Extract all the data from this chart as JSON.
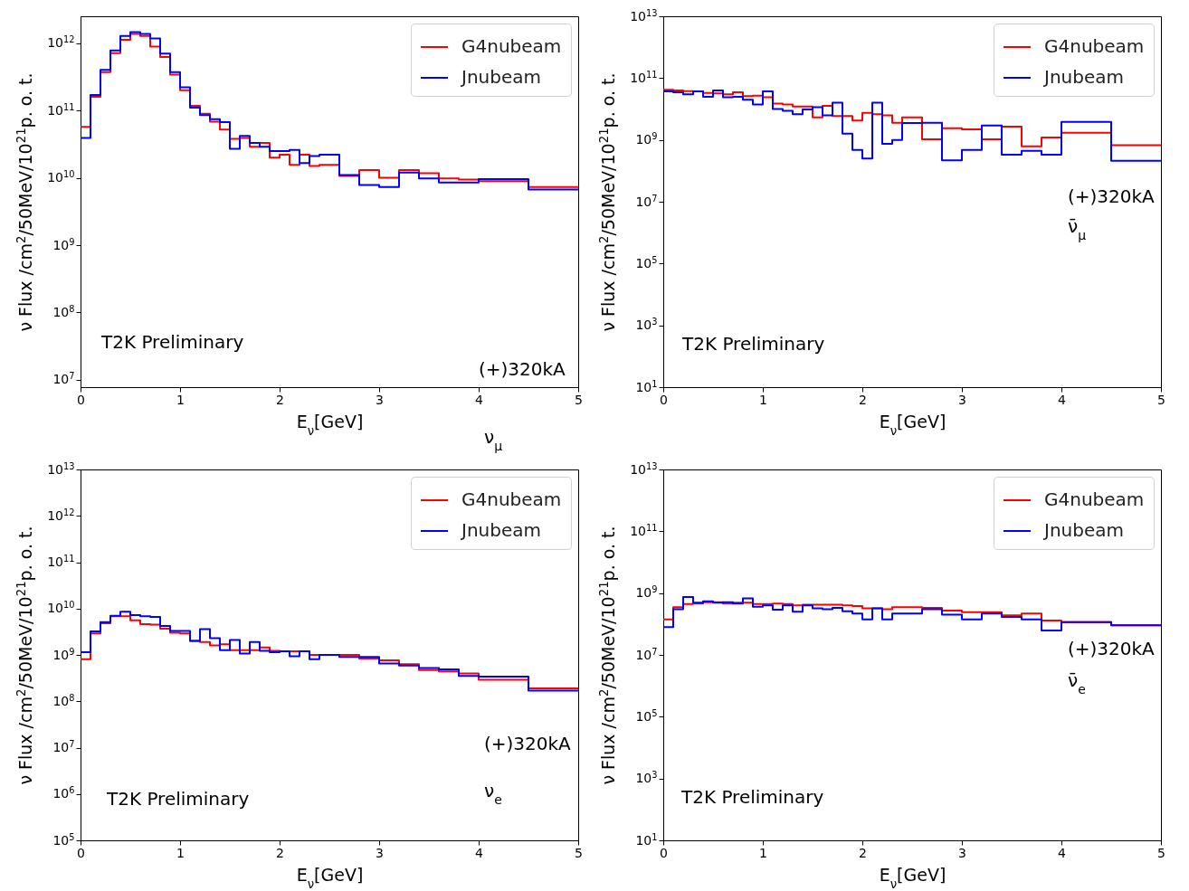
{
  "chart_data": [
    {
      "type": "histogram",
      "bins": [
        0,
        0.1,
        0.2,
        0.3,
        0.4,
        0.5,
        0.6,
        0.7,
        0.8,
        0.9,
        1.0,
        1.1,
        1.2,
        1.3,
        1.4,
        1.5,
        1.6,
        1.7,
        1.8,
        1.9,
        2.0,
        2.1,
        2.2,
        2.3,
        2.4,
        2.6,
        2.8,
        3.0,
        3.2,
        3.4,
        3.6,
        3.8,
        4.0,
        4.5,
        5.0
      ],
      "series": [
        {
          "name": "G4nubeam",
          "color": "#ff0000",
          "values": [
            57000000000.0,
            160000000000.0,
            370000000000.0,
            710000000000.0,
            1120000000000.0,
            1370000000000.0,
            1280000000000.0,
            890000000000.0,
            620000000000.0,
            340000000000.0,
            200000000000.0,
            117000000000.0,
            89000000000.0,
            68000000000.0,
            52000000000.0,
            38000000000.0,
            39000000000.0,
            29000000000.0,
            33000000000.0,
            20000000000.0,
            22000000000.0,
            15600000000.0,
            22000000000.0,
            15000000000.0,
            15600000000.0,
            10700000000.0,
            13000000000.0,
            10000000000.0,
            13000000000.0,
            11700000000.0,
            9800000000.0,
            9400000000.0,
            8900000000.0,
            7300000000.0
          ]
        },
        {
          "name": "Jnubeam",
          "color": "#0000ff",
          "values": [
            39000000000.0,
            170000000000.0,
            400000000000.0,
            780000000000.0,
            1280000000000.0,
            1460000000000.0,
            1370000000000.0,
            1170000000000.0,
            700000000000.0,
            370000000000.0,
            220000000000.0,
            110000000000.0,
            85000000000.0,
            74000000000.0,
            67000000000.0,
            27000000000.0,
            42000000000.0,
            33000000000.0,
            29000000000.0,
            25000000000.0,
            25000000000.0,
            26000000000.0,
            16600000000.0,
            21000000000.0,
            22000000000.0,
            11000000000.0,
            7800000000.0,
            7300000000.0,
            12000000000.0,
            9800000000.0,
            8500000000.0,
            8500000000.0,
            9600000000.0,
            6700000000.0
          ]
        }
      ],
      "xlabel": "E$_{ν}$[GeV]",
      "ylabel": "ν Flux /cm$^{2}$/50MeV/10$^{21}$p. o. t.",
      "xlim": [
        0,
        5
      ],
      "xticks": [
        0,
        1,
        2,
        3,
        4,
        5
      ],
      "log": true,
      "ylim": [
        7800000.0,
        2500000000000.0
      ],
      "yticks": [
        {
          "value": 10000000.0,
          "label": "10$^{7}$"
        },
        {
          "value": 100000000.0,
          "label": "10$^{8}$"
        },
        {
          "value": 1000000000.0,
          "label": "10$^{9}$"
        },
        {
          "value": 10000000000.0,
          "label": "10$^{10}$"
        },
        {
          "value": 100000000000.0,
          "label": "10$^{11}$"
        },
        {
          "value": 1000000000000.0,
          "label": "10$^{12}$"
        }
      ],
      "legend": "top right",
      "annotations": [
        "T2K Preliminary",
        "(+)320kA",
        "ν$_{μ}$"
      ]
    },
    {
      "type": "histogram",
      "bins": [
        0,
        0.1,
        0.2,
        0.3,
        0.4,
        0.5,
        0.6,
        0.7,
        0.8,
        0.9,
        1.0,
        1.1,
        1.2,
        1.3,
        1.4,
        1.5,
        1.6,
        1.7,
        1.8,
        1.9,
        2.0,
        2.1,
        2.2,
        2.3,
        2.4,
        2.6,
        2.8,
        3.0,
        3.2,
        3.4,
        3.6,
        3.8,
        4.0,
        4.5,
        5.0
      ],
      "series": [
        {
          "name": "G4nubeam",
          "color": "#ff0000",
          "values": [
            42000000000.0,
            40000000000.0,
            38000000000.0,
            37000000000.0,
            33000000000.0,
            32000000000.0,
            30000000000.0,
            35000000000.0,
            26000000000.0,
            27000000000.0,
            24000000000.0,
            15000000000.0,
            14000000000.0,
            12000000000.0,
            12000000000.0,
            5400000000.0,
            12600000000.0,
            5900000000.0,
            5900000000.0,
            4200000000.0,
            7500000000.0,
            6800000000.0,
            6200000000.0,
            3600000000.0,
            5400000000.0,
            1050000000.0,
            2400000000.0,
            2200000000.0,
            1050000000.0,
            2700000000.0,
            620000000.0,
            1200000000.0,
            1700000000.0,
            680000000.0
          ]
        },
        {
          "name": "Jnubeam",
          "color": "#0000ff",
          "values": [
            37000000000.0,
            35000000000.0,
            30000000000.0,
            37000000000.0,
            25000000000.0,
            40000000000.0,
            24000000000.0,
            25000000000.0,
            20000000000.0,
            14000000000.0,
            37000000000.0,
            10000000000.0,
            8700000000.0,
            6800000000.0,
            9600000000.0,
            11500000000.0,
            6200000000.0,
            16000000000.0,
            1600000000.0,
            470000000.0,
            250000000.0,
            16000000000.0,
            750000000.0,
            1000000000.0,
            3500000000.0,
            3600000000.0,
            220000000.0,
            470000000.0,
            2900000000.0,
            330000000.0,
            440000000.0,
            330000000.0,
            3800000000.0,
            210000000.0
          ]
        }
      ],
      "xlabel": "E$_{ν}$[GeV]",
      "ylabel": "ν Flux /cm$^{2}$/50MeV/10$^{21}$p. o. t.",
      "xlim": [
        0,
        5
      ],
      "xticks": [
        0,
        1,
        2,
        3,
        4,
        5
      ],
      "log": true,
      "ylim": [
        10,
        10000000000000.0
      ],
      "yticks": [
        {
          "value": 10,
          "label": "10$^{1}$"
        },
        {
          "value": 1000.0,
          "label": "10$^{3}$"
        },
        {
          "value": 100000.0,
          "label": "10$^{5}$"
        },
        {
          "value": 10000000.0,
          "label": "10$^{7}$"
        },
        {
          "value": 1000000000.0,
          "label": "10$^{9}$"
        },
        {
          "value": 100000000000.0,
          "label": "10$^{11}$"
        },
        {
          "value": 10000000000000.0,
          "label": "10$^{13}$"
        }
      ],
      "legend": "top right",
      "annotations": [
        "T2K Preliminary",
        "(+)320kA",
        "ν̄$_{μ}$"
      ]
    },
    {
      "type": "histogram",
      "bins": [
        0,
        0.1,
        0.2,
        0.3,
        0.4,
        0.5,
        0.6,
        0.7,
        0.8,
        0.9,
        1.0,
        1.1,
        1.2,
        1.3,
        1.4,
        1.5,
        1.6,
        1.7,
        1.8,
        1.9,
        2.0,
        2.1,
        2.2,
        2.3,
        2.4,
        2.6,
        2.8,
        3.0,
        3.2,
        3.4,
        3.6,
        3.8,
        4.0,
        4.5,
        5.0
      ],
      "series": [
        {
          "name": "G4nubeam",
          "color": "#ff0000",
          "values": [
            810000000.0,
            2900000000.0,
            4800000000.0,
            6800000000.0,
            6800000000.0,
            5600000000.0,
            4600000000.0,
            4500000000.0,
            3700000000.0,
            3000000000.0,
            2900000000.0,
            2000000000.0,
            1900000000.0,
            1600000000.0,
            1700000000.0,
            1260000000.0,
            1260000000.0,
            1260000000.0,
            1450000000.0,
            1230000000.0,
            1200000000.0,
            1200000000.0,
            1200000000.0,
            1000000000.0,
            1000000000.0,
            1000000000.0,
            840000000.0,
            760000000.0,
            630000000.0,
            470000000.0,
            440000000.0,
            400000000.0,
            290000000.0,
            190000000.0
          ]
        },
        {
          "name": "Jnubeam",
          "color": "#0000ff",
          "values": [
            1150000000.0,
            3200000000.0,
            5100000000.0,
            7000000000.0,
            8500000000.0,
            7200000000.0,
            6800000000.0,
            6600000000.0,
            4200000000.0,
            3300000000.0,
            3300000000.0,
            2000000000.0,
            3600000000.0,
            2300000000.0,
            1260000000.0,
            2100000000.0,
            1070000000.0,
            1900000000.0,
            1230000000.0,
            1150000000.0,
            1200000000.0,
            930000000.0,
            1200000000.0,
            810000000.0,
            1000000000.0,
            900000000.0,
            900000000.0,
            650000000.0,
            590000000.0,
            520000000.0,
            490000000.0,
            350000000.0,
            340000000.0,
            170000000.0
          ]
        }
      ],
      "xlabel": "E$_{ν}$[GeV]",
      "ylabel": "ν Flux /cm$^{2}$/50MeV/10$^{21}$p. o. t.",
      "xlim": [
        0,
        5
      ],
      "xticks": [
        0,
        1,
        2,
        3,
        4,
        5
      ],
      "log": true,
      "ylim": [
        100000.0,
        10000000000000.0
      ],
      "yticks": [
        {
          "value": 100000.0,
          "label": "10$^{5}$"
        },
        {
          "value": 1000000.0,
          "label": "10$^{6}$"
        },
        {
          "value": 10000000.0,
          "label": "10$^{7}$"
        },
        {
          "value": 100000000.0,
          "label": "10$^{8}$"
        },
        {
          "value": 1000000000.0,
          "label": "10$^{9}$"
        },
        {
          "value": 10000000000.0,
          "label": "10$^{10}$"
        },
        {
          "value": 100000000000.0,
          "label": "10$^{11}$"
        },
        {
          "value": 1000000000000.0,
          "label": "10$^{12}$"
        },
        {
          "value": 10000000000000.0,
          "label": "10$^{13}$"
        }
      ],
      "legend": "top right",
      "annotations": [
        "T2K Preliminary",
        "(+)320kA",
        "ν$_{e}$"
      ]
    },
    {
      "type": "histogram",
      "bins": [
        0,
        0.1,
        0.2,
        0.3,
        0.4,
        0.5,
        0.6,
        0.7,
        0.8,
        0.9,
        1.0,
        1.1,
        1.2,
        1.3,
        1.4,
        1.5,
        1.6,
        1.7,
        1.8,
        1.9,
        2.0,
        2.1,
        2.2,
        2.3,
        2.4,
        2.6,
        2.8,
        3.0,
        3.2,
        3.4,
        3.6,
        3.8,
        4.0,
        4.5,
        5.0
      ],
      "series": [
        {
          "name": "G4nubeam",
          "color": "#ff0000",
          "values": [
            140000000.0,
            350000000.0,
            440000000.0,
            460000000.0,
            510000000.0,
            510000000.0,
            460000000.0,
            490000000.0,
            490000000.0,
            440000000.0,
            440000000.0,
            460000000.0,
            440000000.0,
            400000000.0,
            420000000.0,
            420000000.0,
            420000000.0,
            420000000.0,
            400000000.0,
            380000000.0,
            320000000.0,
            320000000.0,
            300000000.0,
            350000000.0,
            350000000.0,
            330000000.0,
            270000000.0,
            240000000.0,
            240000000.0,
            190000000.0,
            220000000.0,
            130000000.0,
            115000000.0,
            91000000.0
          ]
        },
        {
          "name": "Jnubeam",
          "color": "#0000ff",
          "values": [
            80000000.0,
            300000000.0,
            750000000.0,
            490000000.0,
            540000000.0,
            490000000.0,
            510000000.0,
            460000000.0,
            680000000.0,
            360000000.0,
            400000000.0,
            290000000.0,
            400000000.0,
            250000000.0,
            400000000.0,
            320000000.0,
            300000000.0,
            330000000.0,
            260000000.0,
            220000000.0,
            140000000.0,
            320000000.0,
            140000000.0,
            220000000.0,
            220000000.0,
            300000000.0,
            200000000.0,
            140000000.0,
            220000000.0,
            170000000.0,
            140000000.0,
            62000000.0,
            115000000.0,
            91000000.0
          ]
        }
      ],
      "xlabel": "E$_{ν}$[GeV]",
      "ylabel": "ν Flux /cm$^{2}$/50MeV/10$^{21}$p. o. t.",
      "xlim": [
        0,
        5
      ],
      "xticks": [
        0,
        1,
        2,
        3,
        4,
        5
      ],
      "log": true,
      "ylim": [
        10,
        10000000000000.0
      ],
      "yticks": [
        {
          "value": 10,
          "label": "10$^{1}$"
        },
        {
          "value": 1000.0,
          "label": "10$^{3}$"
        },
        {
          "value": 100000.0,
          "label": "10$^{5}$"
        },
        {
          "value": 10000000.0,
          "label": "10$^{7}$"
        },
        {
          "value": 1000000000.0,
          "label": "10$^{9}$"
        },
        {
          "value": 100000000000.0,
          "label": "10$^{11}$"
        },
        {
          "value": 10000000000000.0,
          "label": "10$^{13}$"
        }
      ],
      "legend": "top right",
      "annotations": [
        "T2K Preliminary",
        "(+)320kA",
        "ν̄$_{e}$"
      ]
    }
  ]
}
